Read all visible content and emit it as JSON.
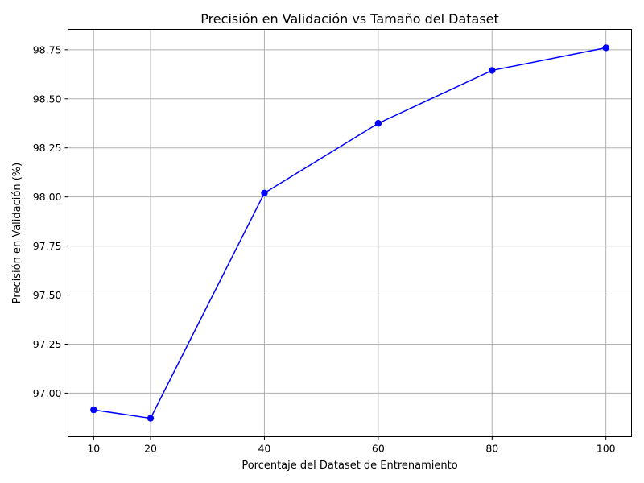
{
  "chart_data": {
    "type": "line",
    "title": "Precisión en Validación vs Tamaño del Dataset",
    "xlabel": "Porcentaje del Dataset de Entrenamiento",
    "ylabel": "Precisión en Validación (%)",
    "x": [
      10,
      20,
      40,
      60,
      80,
      100
    ],
    "series": [
      {
        "values": [
          96.915,
          96.872,
          98.02,
          98.375,
          98.645,
          98.76
        ],
        "color": "#0000ff",
        "marker": "circle"
      }
    ],
    "xticks": [
      10,
      20,
      40,
      60,
      80,
      100
    ],
    "xtick_labels": [
      "10",
      "20",
      "40",
      "60",
      "80",
      "100"
    ],
    "yticks": [
      97.0,
      97.25,
      97.5,
      97.75,
      98.0,
      98.25,
      98.5,
      98.75
    ],
    "ytick_labels": [
      "97.00",
      "97.25",
      "97.50",
      "97.75",
      "98.00",
      "98.25",
      "98.50",
      "98.75"
    ],
    "xlim": [
      5.5,
      104.5
    ],
    "ylim": [
      96.778,
      98.854
    ],
    "grid": true
  }
}
